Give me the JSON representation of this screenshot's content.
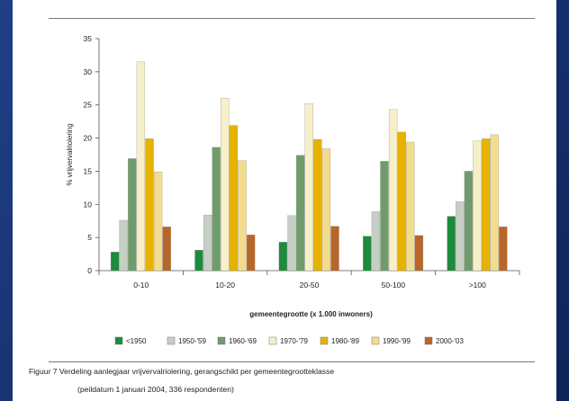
{
  "chart_data": {
    "type": "bar",
    "categories": [
      "0-10",
      "10-20",
      "20-50",
      "50-100",
      ">100"
    ],
    "series": [
      {
        "name": "<1950",
        "color": "#1d8a3c",
        "values": [
          2.8,
          3.1,
          4.3,
          5.2,
          8.2
        ]
      },
      {
        "name": "1950-'59",
        "color": "#c5cfc3",
        "values": [
          7.6,
          8.4,
          8.3,
          8.9,
          10.4
        ]
      },
      {
        "name": "1960-'69",
        "color": "#6f9c6a",
        "values": [
          16.9,
          18.6,
          17.4,
          16.5,
          15.0
        ]
      },
      {
        "name": "1970-'79",
        "color": "#f6efc8",
        "values": [
          31.5,
          26.0,
          25.2,
          24.3,
          19.6
        ]
      },
      {
        "name": "1980-'89",
        "color": "#e8b300",
        "values": [
          19.9,
          21.9,
          19.8,
          20.9,
          19.9
        ]
      },
      {
        "name": "1990-'99",
        "color": "#f3dc8d",
        "values": [
          14.9,
          16.6,
          18.4,
          19.4,
          20.5
        ]
      },
      {
        "name": "2000-'03",
        "color": "#b8662a",
        "values": [
          6.6,
          5.4,
          6.7,
          5.3,
          6.6
        ]
      }
    ],
    "ylabel": "% vrijvervalriolering",
    "xlabel": "gemeentegrootte (x 1.000 inwoners)",
    "yticks": [
      0,
      5,
      10,
      15,
      20,
      25,
      30,
      35
    ],
    "ylim": [
      0,
      35
    ],
    "grid": false,
    "legend_position": "bottom"
  },
  "caption": {
    "line1": "Figuur 7 Verdeling aanlegjaar vrijvervalriolering, gerangschikt per gemeentegrootteklasse",
    "line2": "(peildatum 1 januari 2004, 336 respondenten)"
  }
}
